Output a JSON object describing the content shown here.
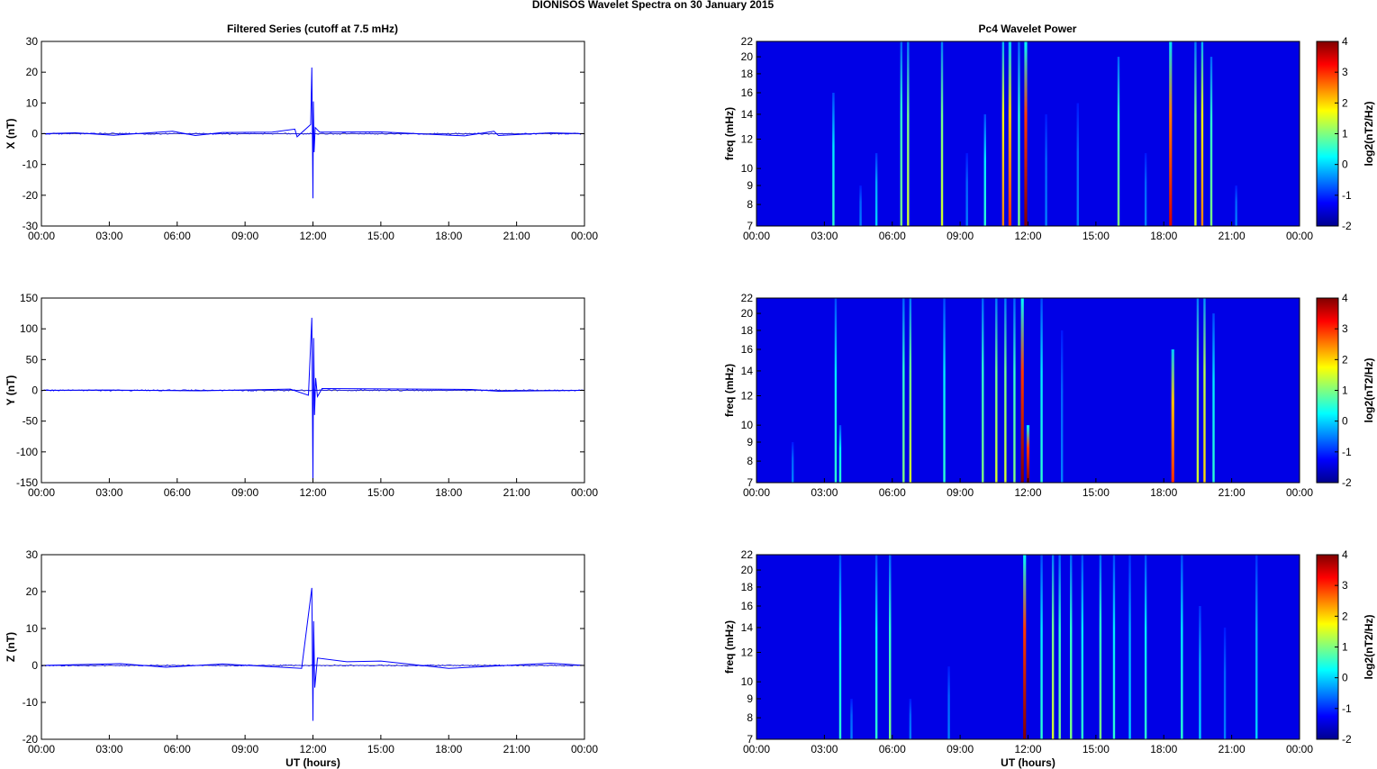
{
  "figure_title": "DIONISOS Wavelet Spectra on 30 January   2015",
  "left_column_title": "Filtered Series (cutoff at 7.5 mHz)",
  "right_column_title": "Pc4 Wavelet Power",
  "colors": {
    "trace": "#0000ff",
    "zero_line": "#000000"
  },
  "chart_data": [
    {
      "type": "line",
      "ylabel": "X (nT)",
      "xlabel": "",
      "x_ticks": [
        "00:00",
        "03:00",
        "06:00",
        "09:00",
        "12:00",
        "15:00",
        "18:00",
        "21:00",
        "00:00"
      ],
      "xlim_hours": [
        0,
        24
      ],
      "ylim": [
        -30,
        30
      ],
      "y_ticks": [
        30,
        20,
        10,
        0,
        -10,
        -20,
        -30
      ],
      "series": [
        {
          "x_hours": [
            0,
            1.5,
            3.2,
            5.8,
            6.8,
            8.0,
            10.2,
            11.2,
            11.3,
            11.9,
            11.95,
            12.0,
            12.02,
            12.05,
            12.1,
            12.3,
            15.0,
            18.7,
            20.0,
            20.2,
            22.5,
            24
          ],
          "values": [
            0,
            0.3,
            -0.5,
            0.8,
            -0.6,
            0.4,
            0.5,
            1.5,
            -1.0,
            3.0,
            21.5,
            -21.0,
            10.5,
            -6.0,
            2.0,
            0.5,
            0.6,
            -0.7,
            0.8,
            -0.6,
            0.3,
            0
          ]
        }
      ]
    },
    {
      "type": "line",
      "ylabel": "Y (nT)",
      "xlabel": "",
      "x_ticks": [
        "00:00",
        "03:00",
        "06:00",
        "09:00",
        "12:00",
        "15:00",
        "18:00",
        "21:00",
        "00:00"
      ],
      "xlim_hours": [
        0,
        24
      ],
      "ylim": [
        -150,
        150
      ],
      "y_ticks": [
        150,
        100,
        50,
        0,
        -50,
        -100,
        -150
      ],
      "series": [
        {
          "x_hours": [
            0,
            3.0,
            7.0,
            11.0,
            11.8,
            11.95,
            12.0,
            12.03,
            12.07,
            12.12,
            12.2,
            12.4,
            19.0,
            20.2,
            24
          ],
          "values": [
            0,
            0.5,
            -0.8,
            2.0,
            -8.0,
            118.0,
            -148.0,
            85.0,
            -40.0,
            20.0,
            -10.0,
            3.0,
            1.5,
            -1.5,
            0
          ]
        }
      ]
    },
    {
      "type": "line",
      "ylabel": "Z (nT)",
      "xlabel": "UT (hours)",
      "x_ticks": [
        "00:00",
        "03:00",
        "06:00",
        "09:00",
        "12:00",
        "15:00",
        "18:00",
        "21:00",
        "00:00"
      ],
      "xlim_hours": [
        0,
        24
      ],
      "ylim": [
        -20,
        30
      ],
      "y_ticks": [
        30,
        20,
        10,
        0,
        -10,
        -20
      ],
      "series": [
        {
          "x_hours": [
            0,
            3.5,
            5.5,
            8.0,
            11.5,
            11.95,
            12.0,
            12.03,
            12.08,
            12.2,
            13.5,
            15.0,
            18.0,
            22.5,
            24
          ],
          "values": [
            0,
            0.5,
            -0.5,
            0.4,
            -0.8,
            21.0,
            -15.0,
            12.0,
            -6.0,
            2.0,
            1.0,
            1.2,
            -0.8,
            0.6,
            0
          ]
        }
      ]
    },
    {
      "type": "heatmap",
      "ylabel": "freq (mHz)",
      "xlabel": "",
      "x_ticks": [
        "00:00",
        "03:00",
        "06:00",
        "09:00",
        "12:00",
        "15:00",
        "18:00",
        "21:00",
        "00:00"
      ],
      "xlim_hours": [
        0,
        24
      ],
      "y_scale": "log",
      "ylim": [
        7,
        22
      ],
      "y_ticks": [
        22,
        20,
        18,
        16,
        14,
        12,
        10,
        9,
        8,
        7
      ],
      "colorbar_label": "log2(nT2/Hz)",
      "clim": [
        -2,
        4
      ],
      "colorbar_ticks": [
        4,
        3,
        2,
        1,
        0,
        -1,
        -2
      ],
      "background_level": -2,
      "bursts": [
        {
          "t": 3.4,
          "level": 0.5,
          "f_top": 16
        },
        {
          "t": 4.6,
          "level": -0.5,
          "f_top": 9
        },
        {
          "t": 5.3,
          "level": 0.0,
          "f_top": 11
        },
        {
          "t": 6.4,
          "level": 1.0,
          "f_top": 22
        },
        {
          "t": 6.7,
          "level": 1.5,
          "f_top": 22
        },
        {
          "t": 8.2,
          "level": 1.5,
          "f_top": 22
        },
        {
          "t": 9.3,
          "level": -0.5,
          "f_top": 11
        },
        {
          "t": 10.1,
          "level": 0.5,
          "f_top": 14
        },
        {
          "t": 10.9,
          "level": 2.5,
          "f_top": 22
        },
        {
          "t": 11.2,
          "level": 3.0,
          "f_top": 22
        },
        {
          "t": 11.6,
          "level": 1.0,
          "f_top": 22
        },
        {
          "t": 11.9,
          "level": 4.0,
          "f_top": 22
        },
        {
          "t": 12.8,
          "level": -0.5,
          "f_top": 14
        },
        {
          "t": 14.2,
          "level": -0.5,
          "f_top": 15
        },
        {
          "t": 16.0,
          "level": 1.0,
          "f_top": 20
        },
        {
          "t": 17.2,
          "level": -0.5,
          "f_top": 11
        },
        {
          "t": 18.3,
          "level": 3.5,
          "f_top": 22
        },
        {
          "t": 19.4,
          "level": 1.5,
          "f_top": 22
        },
        {
          "t": 19.7,
          "level": 2.5,
          "f_top": 22
        },
        {
          "t": 20.1,
          "level": 1.0,
          "f_top": 20
        },
        {
          "t": 21.2,
          "level": -0.5,
          "f_top": 9
        }
      ]
    },
    {
      "type": "heatmap",
      "ylabel": "freq (mHz)",
      "xlabel": "",
      "x_ticks": [
        "00:00",
        "03:00",
        "06:00",
        "09:00",
        "12:00",
        "15:00",
        "18:00",
        "21:00",
        "00:00"
      ],
      "xlim_hours": [
        0,
        24
      ],
      "y_scale": "log",
      "ylim": [
        7,
        22
      ],
      "y_ticks": [
        22,
        20,
        18,
        16,
        14,
        12,
        10,
        9,
        8,
        7
      ],
      "colorbar_label": "log2(nT2/Hz)",
      "clim": [
        -2,
        4
      ],
      "colorbar_ticks": [
        4,
        3,
        2,
        1,
        0,
        -1,
        -2
      ],
      "background_level": -2,
      "bursts": [
        {
          "t": 1.6,
          "level": -0.5,
          "f_top": 9
        },
        {
          "t": 3.5,
          "level": 0.5,
          "f_top": 22
        },
        {
          "t": 3.7,
          "level": 0.5,
          "f_top": 10
        },
        {
          "t": 6.5,
          "level": 1.0,
          "f_top": 22
        },
        {
          "t": 6.8,
          "level": 1.5,
          "f_top": 22
        },
        {
          "t": 8.3,
          "level": 0.5,
          "f_top": 22
        },
        {
          "t": 10.0,
          "level": 1.0,
          "f_top": 22
        },
        {
          "t": 10.6,
          "level": 1.5,
          "f_top": 22
        },
        {
          "t": 11.0,
          "level": 1.5,
          "f_top": 22
        },
        {
          "t": 11.4,
          "level": 1.0,
          "f_top": 22
        },
        {
          "t": 11.75,
          "level": 4.0,
          "f_top": 22
        },
        {
          "t": 12.0,
          "level": 4.0,
          "f_top": 10
        },
        {
          "t": 12.6,
          "level": 0.5,
          "f_top": 22
        },
        {
          "t": 13.5,
          "level": -0.5,
          "f_top": 18
        },
        {
          "t": 18.4,
          "level": 3.0,
          "f_top": 16
        },
        {
          "t": 19.5,
          "level": 1.5,
          "f_top": 22
        },
        {
          "t": 19.8,
          "level": 2.0,
          "f_top": 22
        },
        {
          "t": 20.2,
          "level": 0.5,
          "f_top": 20
        }
      ]
    },
    {
      "type": "heatmap",
      "ylabel": "freq (mHz)",
      "xlabel": "UT (hours)",
      "x_ticks": [
        "00:00",
        "03:00",
        "06:00",
        "09:00",
        "12:00",
        "15:00",
        "18:00",
        "21:00",
        "00:00"
      ],
      "xlim_hours": [
        0,
        24
      ],
      "y_scale": "log",
      "ylim": [
        7,
        22
      ],
      "y_ticks": [
        22,
        20,
        18,
        16,
        14,
        12,
        10,
        9,
        8,
        7
      ],
      "colorbar_label": "log2(nT2/Hz)",
      "clim": [
        -2,
        4
      ],
      "colorbar_ticks": [
        4,
        3,
        2,
        1,
        0,
        -1,
        -2
      ],
      "background_level": -2,
      "bursts": [
        {
          "t": 3.7,
          "level": 0.5,
          "f_top": 22
        },
        {
          "t": 4.2,
          "level": -0.5,
          "f_top": 9
        },
        {
          "t": 5.3,
          "level": 0.5,
          "f_top": 22
        },
        {
          "t": 5.9,
          "level": 1.0,
          "f_top": 22
        },
        {
          "t": 6.8,
          "level": -0.5,
          "f_top": 9
        },
        {
          "t": 8.5,
          "level": -0.5,
          "f_top": 11
        },
        {
          "t": 11.85,
          "level": 4.0,
          "f_top": 22
        },
        {
          "t": 12.6,
          "level": 0.5,
          "f_top": 22
        },
        {
          "t": 13.1,
          "level": 1.5,
          "f_top": 22
        },
        {
          "t": 13.4,
          "level": 1.0,
          "f_top": 22
        },
        {
          "t": 13.9,
          "level": 1.0,
          "f_top": 22
        },
        {
          "t": 14.4,
          "level": 0.5,
          "f_top": 22
        },
        {
          "t": 15.2,
          "level": 1.0,
          "f_top": 22
        },
        {
          "t": 15.8,
          "level": 0.5,
          "f_top": 22
        },
        {
          "t": 16.5,
          "level": 0.0,
          "f_top": 22
        },
        {
          "t": 17.2,
          "level": 0.5,
          "f_top": 22
        },
        {
          "t": 18.8,
          "level": 0.5,
          "f_top": 22
        },
        {
          "t": 19.6,
          "level": 0.0,
          "f_top": 16
        },
        {
          "t": 20.7,
          "level": -0.5,
          "f_top": 14
        },
        {
          "t": 22.1,
          "level": 0.0,
          "f_top": 22
        }
      ]
    }
  ]
}
